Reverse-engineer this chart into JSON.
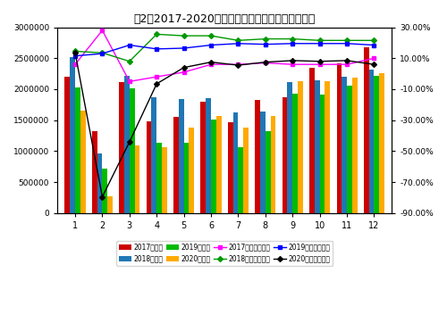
{
  "title": "图2：2017-2020年月度乘用车销量及同比变化情况",
  "months": [
    1,
    2,
    3,
    4,
    5,
    6,
    7,
    8,
    9,
    10,
    11,
    12
  ],
  "sales_2017": [
    2200000,
    1320000,
    2120000,
    1480000,
    1560000,
    1800000,
    1470000,
    1820000,
    1870000,
    2350000,
    2420000,
    2680000
  ],
  "sales_2018": [
    2520000,
    970000,
    2220000,
    1870000,
    1840000,
    1850000,
    1620000,
    1640000,
    2120000,
    2140000,
    2200000,
    2320000
  ],
  "sales_2019": [
    2030000,
    720000,
    2010000,
    1130000,
    1130000,
    1510000,
    1060000,
    1330000,
    1930000,
    1910000,
    2060000,
    2210000
  ],
  "sales_2020": [
    1660000,
    270000,
    1090000,
    1060000,
    1380000,
    1570000,
    1380000,
    1570000,
    2130000,
    2130000,
    2190000,
    2260000
  ],
  "yoy_2017": [
    0.06,
    0.28,
    -0.05,
    -0.02,
    0.01,
    0.06,
    0.06,
    0.07,
    0.06,
    0.06,
    0.06,
    0.1
  ],
  "yoy_2018": [
    0.145,
    0.135,
    0.08,
    0.255,
    0.245,
    0.245,
    0.215,
    0.225,
    0.225,
    0.215,
    0.215,
    0.215
  ],
  "yoy_2019": [
    0.115,
    0.13,
    0.185,
    0.16,
    0.165,
    0.185,
    0.195,
    0.19,
    0.195,
    0.195,
    0.195,
    0.185
  ],
  "yoy_2020": [
    0.135,
    -0.795,
    -0.44,
    -0.065,
    0.04,
    0.075,
    0.055,
    0.075,
    0.085,
    0.08,
    0.085,
    0.06
  ],
  "bar_colors": [
    "#cc0000",
    "#1f77b4",
    "#00bb00",
    "#ffaa00"
  ],
  "line_colors": [
    "#ff00ff",
    "#009900",
    "#0000ff",
    "#000000"
  ],
  "line_markers": [
    "s",
    "D",
    "s",
    "D"
  ],
  "ylim_left": [
    0,
    3000000
  ],
  "ylim_right": [
    -0.9,
    0.3
  ],
  "yticks_left": [
    0,
    500000,
    1000000,
    1500000,
    2000000,
    2500000,
    3000000
  ],
  "yticks_right": [
    -0.9,
    -0.7,
    -0.5,
    -0.3,
    -0.1,
    0.1,
    0.3
  ],
  "legend_labels_bar": [
    "2017年销量",
    "2018年销量",
    "2019年销量",
    "2020年销量"
  ],
  "legend_labels_line": [
    "2017年同比增长率",
    "2018年同比增长率",
    "2019年同比增长率",
    "2020年同比增长率"
  ]
}
